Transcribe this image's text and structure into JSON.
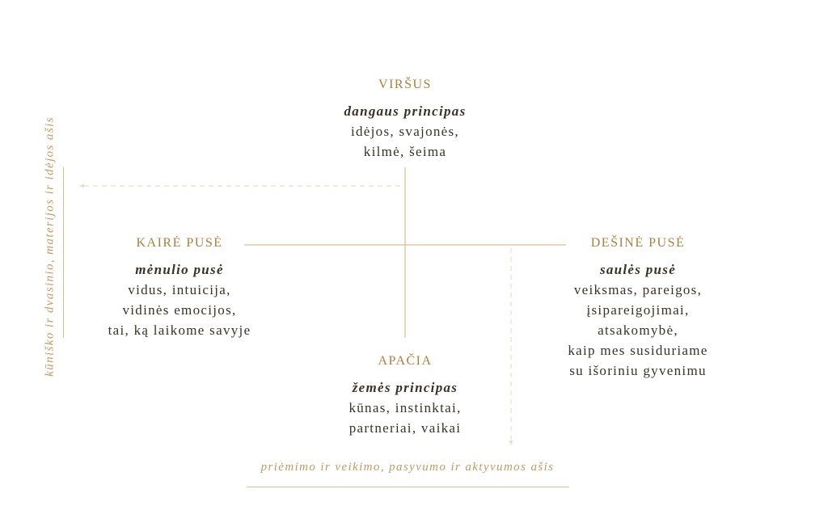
{
  "colors": {
    "accent": "#a9803f",
    "text": "#3a3128",
    "line": "#d9bc92",
    "dashed": "#eadccb"
  },
  "top": {
    "title": "VIRŠUS",
    "subtitle": "dangaus principas",
    "lines": [
      "idėjos, svajonės,",
      "kilmė, šeima"
    ]
  },
  "left": {
    "title": "KAIRĖ PUSĖ",
    "subtitle": "mėnulio pusė",
    "lines": [
      "vidus, intuicija,",
      "vidinės emocijos,",
      "tai, ką laikome savyje"
    ]
  },
  "right": {
    "title": "DEŠINĖ PUSĖ",
    "subtitle": "saulės pusė",
    "lines": [
      "veiksmas, pareigos,",
      "įsipareigojimai,",
      "atsakomybė,",
      "kaip mes susiduriame",
      "su išoriniu gyvenimu"
    ]
  },
  "bottom": {
    "title": "APAČIA",
    "subtitle": "žemės principas",
    "lines": [
      "kūnas, instinktai,",
      "partneriai, vaikai"
    ]
  },
  "vertical_axis_label": "kūniško ir dvasinio, materijos ir idėjos ašis",
  "horizontal_axis_label": "priėmimo ir veikimo, pasyvumo ir aktyvumos ašis"
}
